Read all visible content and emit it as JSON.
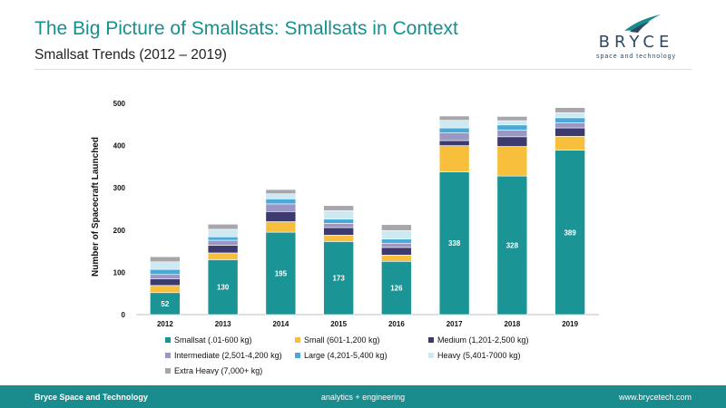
{
  "header": {
    "title": "The Big Picture of Smallsats: Smallsats in Context",
    "subtitle": "Smallsat Trends (2012 – 2019)"
  },
  "logo": {
    "word": "BRYCE",
    "tagline": "space and technology"
  },
  "footer": {
    "company": "Bryce Space and Technology",
    "tagline": "analytics  +  engineering",
    "url": "www.brycetech.com"
  },
  "colors": {
    "brand_teal": "#16908f",
    "footer_teal": "#1b8c8e",
    "navy": "#2c4a63"
  },
  "chart_data": {
    "type": "bar",
    "stacked": true,
    "title": "",
    "xlabel": "",
    "ylabel": "Number of Spacecraft Launched",
    "ylim": [
      0,
      500
    ],
    "yticks": [
      0,
      100,
      200,
      300,
      400,
      500
    ],
    "gridlines": false,
    "legend_position": "bottom",
    "categories": [
      "2012",
      "2013",
      "2014",
      "2015",
      "2016",
      "2017",
      "2018",
      "2019"
    ],
    "series": [
      {
        "name": "Smallsat (.01-600 kg)",
        "color": "#1a9494",
        "values": [
          52,
          130,
          195,
          173,
          126,
          338,
          328,
          389
        ],
        "show_labels": true
      },
      {
        "name": "Small (601-1,200 kg)",
        "color": "#f7bf3b",
        "values": [
          17,
          16,
          25,
          15,
          15,
          62,
          70,
          33
        ]
      },
      {
        "name": "Medium (1,201-2,500 kg)",
        "color": "#3d3a6e",
        "values": [
          16,
          18,
          24,
          18,
          18,
          12,
          23,
          20
        ]
      },
      {
        "name": "Intermediate (2,501-4,200 kg)",
        "color": "#9b97c4",
        "values": [
          10,
          12,
          18,
          10,
          10,
          18,
          16,
          12
        ]
      },
      {
        "name": "Large (4,201-5,400 kg)",
        "color": "#4ba9d9",
        "values": [
          12,
          8,
          12,
          10,
          10,
          12,
          12,
          12
        ]
      },
      {
        "name": "Heavy (5,401-7000 kg)",
        "color": "#cdeaf3",
        "values": [
          18,
          18,
          12,
          20,
          20,
          18,
          10,
          12
        ]
      },
      {
        "name": "Extra Heavy (7,000+ kg)",
        "color": "#a6a6ab",
        "values": [
          12,
          12,
          10,
          12,
          14,
          10,
          10,
          12
        ]
      }
    ]
  }
}
